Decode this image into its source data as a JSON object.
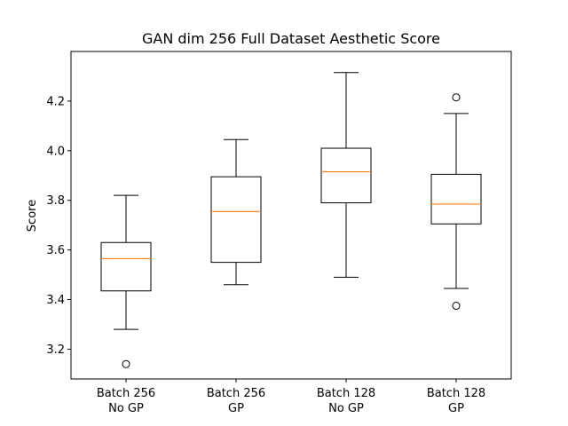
{
  "chart_data": {
    "type": "boxplot",
    "title": "GAN dim 256 Full Dataset Aesthetic Score",
    "xlabel": "",
    "ylabel": "Score",
    "ylim": [
      3.08,
      4.4
    ],
    "yticks": [
      3.2,
      3.4,
      3.6,
      3.8,
      4.0,
      4.2
    ],
    "ytick_labels": [
      "3.2",
      "3.4",
      "3.6",
      "3.8",
      "4.0",
      "4.2"
    ],
    "categories": [
      [
        "Batch 256",
        "No GP"
      ],
      [
        "Batch 256",
        "GP"
      ],
      [
        "Batch 128",
        "No GP"
      ],
      [
        "Batch 128",
        "GP"
      ]
    ],
    "boxes": [
      {
        "whisker_low": 3.28,
        "q1": 3.435,
        "median": 3.565,
        "q3": 3.63,
        "whisker_high": 3.82,
        "outliers": [
          3.14
        ]
      },
      {
        "whisker_low": 3.46,
        "q1": 3.55,
        "median": 3.755,
        "q3": 3.895,
        "whisker_high": 4.045,
        "outliers": []
      },
      {
        "whisker_low": 3.49,
        "q1": 3.79,
        "median": 3.915,
        "q3": 4.01,
        "whisker_high": 4.315,
        "outliers": []
      },
      {
        "whisker_low": 3.445,
        "q1": 3.705,
        "median": 3.785,
        "q3": 3.905,
        "whisker_high": 4.15,
        "outliers": [
          4.215,
          3.375
        ]
      }
    ],
    "colors": {
      "box": "#000000",
      "median": "#ff7f0e",
      "outlier": "#000000"
    }
  }
}
